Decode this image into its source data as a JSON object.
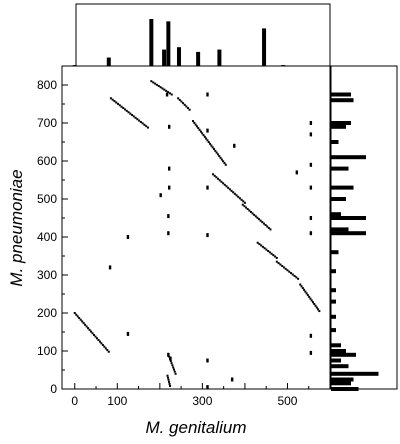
{
  "chart_data": {
    "type": "scatter",
    "title": "",
    "xlabel": "M. genitalium",
    "ylabel": "M. pneumoniae",
    "xlim": [
      -30,
      600
    ],
    "ylim": [
      0,
      850
    ],
    "xticks": [
      {
        "value": 0,
        "label": "0"
      },
      {
        "value": 100,
        "label": "100"
      },
      {
        "value": 300,
        "label": "300"
      },
      {
        "value": 500,
        "label": "500"
      }
    ],
    "yticks": [
      {
        "value": 0,
        "label": "0"
      },
      {
        "value": 100,
        "label": "100"
      },
      {
        "value": 200,
        "label": "200"
      },
      {
        "value": 300,
        "label": "300"
      },
      {
        "value": 400,
        "label": "400"
      },
      {
        "value": 500,
        "label": "500"
      },
      {
        "value": 600,
        "label": "600"
      },
      {
        "value": 700,
        "label": "700"
      },
      {
        "value": 800,
        "label": "800"
      }
    ],
    "grid": false,
    "series": [
      {
        "segments": [
          {
            "from": [
              0,
              200
            ],
            "to": [
              80,
              98
            ]
          },
          {
            "from": [
              85,
              765
            ],
            "to": [
              172,
              688
            ]
          },
          {
            "from": [
              180,
              810
            ],
            "to": [
              228,
              775
            ]
          },
          {
            "from": [
              243,
              765
            ],
            "to": [
              270,
              735
            ]
          },
          {
            "from": [
              278,
              705
            ],
            "to": [
              355,
              590
            ]
          },
          {
            "from": [
              325,
              565
            ],
            "to": [
              400,
              490
            ]
          },
          {
            "from": [
              395,
              485
            ],
            "to": [
              460,
              420
            ]
          },
          {
            "from": [
              430,
              385
            ],
            "to": [
              475,
              345
            ]
          },
          {
            "from": [
              475,
              335
            ],
            "to": [
              525,
              290
            ]
          },
          {
            "from": [
              530,
              275
            ],
            "to": [
              575,
              205
            ]
          },
          {
            "from": [
              222,
              85
            ],
            "to": [
              237,
              40
            ]
          },
          {
            "from": [
              218,
              35
            ],
            "to": [
              224,
              8
            ]
          }
        ]
      },
      {
        "points": [
          [
            217,
            775
          ],
          [
            312,
            775
          ],
          [
            222,
            690
          ],
          [
            312,
            680
          ],
          [
            375,
            640
          ],
          [
            555,
            700
          ],
          [
            555,
            670
          ],
          [
            555,
            590
          ],
          [
            522,
            570
          ],
          [
            222,
            580
          ],
          [
            222,
            530
          ],
          [
            312,
            530
          ],
          [
            202,
            510
          ],
          [
            555,
            530
          ],
          [
            555,
            450
          ],
          [
            555,
            410
          ],
          [
            220,
            455
          ],
          [
            220,
            410
          ],
          [
            312,
            405
          ],
          [
            125,
            400
          ],
          [
            83,
            320
          ],
          [
            125,
            145
          ],
          [
            555,
            140
          ],
          [
            555,
            95
          ],
          [
            312,
            75
          ],
          [
            220,
            90
          ],
          [
            225,
            80
          ],
          [
            370,
            25
          ],
          [
            312,
            5
          ]
        ]
      }
    ],
    "marginal_top": {
      "x": [
        0,
        80,
        180,
        210,
        220,
        245,
        290,
        340,
        445,
        490
      ],
      "values": [
        0.02,
        0.18,
        1.0,
        0.35,
        0.95,
        0.4,
        0.3,
        0.35,
        0.8,
        0.02
      ]
    },
    "marginal_right": {
      "y": [
        0,
        15,
        25,
        40,
        60,
        75,
        90,
        100,
        115,
        155,
        190,
        230,
        260,
        310,
        360,
        410,
        420,
        450,
        460,
        500,
        530,
        580,
        610,
        650,
        690,
        700,
        760,
        775
      ],
      "values": [
        0.55,
        0.4,
        0.45,
        0.95,
        0.35,
        0.2,
        0.5,
        0.3,
        0.2,
        0.1,
        0.1,
        0.1,
        0.1,
        0.1,
        0.15,
        0.7,
        0.35,
        0.7,
        0.2,
        0.3,
        0.45,
        0.35,
        0.7,
        0.15,
        0.3,
        0.4,
        0.45,
        0.4
      ]
    }
  }
}
